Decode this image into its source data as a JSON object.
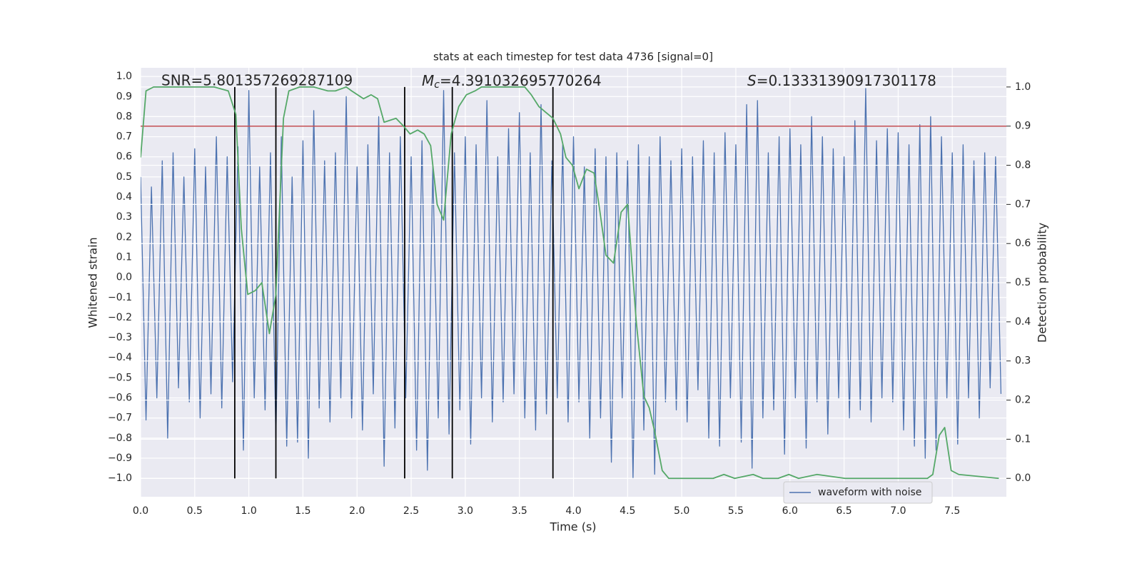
{
  "chart_data": {
    "type": "line",
    "title": "stats at each timestep for test data 4736 [signal=0]",
    "xlabel": "Time (s)",
    "ylabel": "Whitened strain",
    "y2label": "Detection probability",
    "annotations": [
      {
        "text": "SNR=5.801357269287109"
      },
      {
        "symbol": "M",
        "subscript": "c",
        "text": "=4.391032695770264"
      },
      {
        "symbol": "S",
        "text": "=0.13331390917301178"
      }
    ],
    "xlim": [
      0,
      8
    ],
    "xticks": [
      {
        "value": 0,
        "label": "0.0"
      },
      0.5,
      {
        "value": 1,
        "label": "1.0"
      },
      1.5,
      {
        "value": 2,
        "label": "2.0"
      },
      2.5,
      {
        "value": 3,
        "label": "3.0"
      },
      3.5,
      {
        "value": 4,
        "label": "4.0"
      },
      4.5,
      {
        "value": 5,
        "label": "5.0"
      },
      5.5,
      {
        "value": 6,
        "label": "6.0"
      },
      6.5,
      {
        "value": 7,
        "label": "7.0"
      },
      7.5
    ],
    "ylim": [
      -1.092,
      1.043
    ],
    "yticks": [
      {
        "value": -1,
        "label": "−1.0"
      },
      {
        "value": -0.9,
        "label": "−0.9"
      },
      {
        "value": -0.8,
        "label": "−0.8"
      },
      {
        "value": -0.7,
        "label": "−0.7"
      },
      {
        "value": -0.6,
        "label": "−0.6"
      },
      {
        "value": -0.5,
        "label": "−0.5"
      },
      {
        "value": -0.4,
        "label": "−0.4"
      },
      {
        "value": -0.3,
        "label": "−0.3"
      },
      {
        "value": -0.2,
        "label": "−0.2"
      },
      {
        "value": -0.1,
        "label": "−0.1"
      },
      {
        "value": 0,
        "label": "0.0"
      },
      0.1,
      0.2,
      0.3,
      0.4,
      0.5,
      0.6,
      0.7,
      0.8,
      0.9,
      {
        "value": 1,
        "label": "1.0"
      }
    ],
    "y2lim": [
      -0.047,
      1.049
    ],
    "y2ticks": [
      {
        "value": 0,
        "label": "0.0"
      },
      0.1,
      0.2,
      0.3,
      0.4,
      0.5,
      0.6,
      0.7,
      0.8,
      0.9,
      {
        "value": 1,
        "label": "1.0"
      }
    ],
    "grid": true,
    "legend": "lower right",
    "series": [
      {
        "name": "waveform with noise",
        "color": "#4c72b0",
        "x": [
          0,
          0.05,
          0.1,
          0.15,
          0.2,
          0.25,
          0.3,
          0.35,
          0.4,
          0.45,
          0.5,
          0.55,
          0.6,
          0.65,
          0.7,
          0.75,
          0.8,
          0.85,
          0.9,
          0.95,
          1,
          1.05,
          1.1,
          1.15,
          1.2,
          1.25,
          1.3,
          1.35,
          1.4,
          1.45,
          1.5,
          1.55,
          1.6,
          1.65,
          1.7,
          1.75,
          1.8,
          1.85,
          1.9,
          1.95,
          2,
          2.05,
          2.1,
          2.15,
          2.2,
          2.25,
          2.3,
          2.35,
          2.4,
          2.45,
          2.5,
          2.55,
          2.6,
          2.65,
          2.7,
          2.75,
          2.8,
          2.85,
          2.9,
          2.95,
          3,
          3.05,
          3.1,
          3.15,
          3.2,
          3.25,
          3.3,
          3.35,
          3.4,
          3.45,
          3.5,
          3.55,
          3.6,
          3.65,
          3.7,
          3.75,
          3.8,
          3.85,
          3.9,
          3.95,
          4,
          4.05,
          4.1,
          4.15,
          4.2,
          4.25,
          4.3,
          4.35,
          4.4,
          4.45,
          4.5,
          4.55,
          4.6,
          4.65,
          4.7,
          4.75,
          4.8,
          4.85,
          4.9,
          4.95,
          5,
          5.05,
          5.1,
          5.15,
          5.2,
          5.25,
          5.3,
          5.35,
          5.4,
          5.45,
          5.5,
          5.55,
          5.6,
          5.65,
          5.7,
          5.75,
          5.8,
          5.85,
          5.9,
          5.95,
          6,
          6.05,
          6.1,
          6.15,
          6.2,
          6.25,
          6.3,
          6.35,
          6.4,
          6.45,
          6.5,
          6.55,
          6.6,
          6.65,
          6.7,
          6.75,
          6.8,
          6.85,
          6.9,
          6.95,
          7,
          7.05,
          7.1,
          7.15,
          7.2,
          7.25,
          7.3,
          7.35,
          7.4,
          7.45,
          7.5,
          7.55,
          7.6,
          7.65,
          7.7,
          7.75,
          7.8,
          7.85,
          7.9,
          7.95
        ],
        "values": [
          0.5,
          -0.71,
          0.45,
          -0.6,
          0.58,
          -0.8,
          0.62,
          -0.55,
          0.5,
          -0.62,
          0.64,
          -0.7,
          0.55,
          -0.58,
          0.7,
          -0.65,
          0.6,
          -0.52,
          0.65,
          -0.86,
          0.93,
          -0.6,
          0.55,
          -0.66,
          0.62,
          -0.8,
          0.7,
          -0.84,
          0.5,
          -0.82,
          0.68,
          -0.9,
          0.83,
          -0.65,
          0.58,
          -0.72,
          0.62,
          -0.6,
          0.9,
          -0.7,
          0.55,
          -0.76,
          0.66,
          -0.58,
          0.8,
          -0.94,
          0.62,
          -0.75,
          0.7,
          -0.6,
          0.6,
          -0.86,
          0.68,
          -0.96,
          0.55,
          -0.7,
          0.93,
          -0.78,
          0.62,
          -0.66,
          0.7,
          -0.83,
          0.66,
          -0.6,
          0.88,
          -0.72,
          0.6,
          -0.62,
          0.74,
          -0.58,
          0.82,
          -0.7,
          0.62,
          -0.76,
          0.86,
          -0.68,
          0.58,
          -0.6,
          0.66,
          -0.72,
          0.7,
          -0.62,
          0.55,
          -0.8,
          0.64,
          -0.7,
          0.6,
          -0.92,
          0.62,
          -0.6,
          0.58,
          -1.0,
          0.66,
          -0.76,
          0.6,
          -0.98,
          0.7,
          -0.62,
          0.58,
          -0.66,
          0.64,
          -0.72,
          0.6,
          -0.56,
          0.68,
          -0.8,
          0.62,
          -0.84,
          0.72,
          -0.6,
          0.66,
          -0.82,
          0.86,
          -0.95,
          0.88,
          -0.7,
          0.62,
          -0.66,
          0.7,
          -0.88,
          0.74,
          -0.6,
          0.66,
          -0.85,
          0.8,
          -0.62,
          0.7,
          -0.78,
          0.64,
          -0.6,
          0.6,
          -0.7,
          0.78,
          -0.66,
          0.94,
          -0.72,
          0.68,
          -0.6,
          0.74,
          -0.62,
          0.72,
          -0.76,
          0.66,
          -0.84,
          0.76,
          -0.9,
          0.8,
          -0.86,
          0.7,
          -0.6,
          0.62,
          -0.83,
          0.66,
          -0.6,
          0.58,
          -0.7,
          0.62,
          -0.55,
          0.6,
          -0.58
        ]
      },
      {
        "color": "#55a868",
        "axis": "y2",
        "x": [
          0,
          0.05,
          0.12,
          0.68,
          0.81,
          0.88,
          0.93,
          0.99,
          1.06,
          1.12,
          1.19,
          1.25,
          1.32,
          1.37,
          1.47,
          1.6,
          1.73,
          1.8,
          1.9,
          1.95,
          2.06,
          2.13,
          2.19,
          2.25,
          2.36,
          2.43,
          2.49,
          2.56,
          2.62,
          2.68,
          2.74,
          2.8,
          2.87,
          2.94,
          3.01,
          3.09,
          3.15,
          3.55,
          3.61,
          3.68,
          3.81,
          3.88,
          3.93,
          3.99,
          4.05,
          4.12,
          4.19,
          4.24,
          4.3,
          4.37,
          4.44,
          4.5,
          4.58,
          4.65,
          4.7,
          4.75,
          4.82,
          4.88,
          5.29,
          5.39,
          5.49,
          5.66,
          5.75,
          5.89,
          5.99,
          6.08,
          6.25,
          6.51,
          6.68,
          7.27,
          7.32,
          7.38,
          7.43,
          7.49,
          7.56,
          7.93
        ],
        "values": [
          0.82,
          0.99,
          1.0,
          1.0,
          0.99,
          0.93,
          0.64,
          0.47,
          0.48,
          0.5,
          0.37,
          0.47,
          0.92,
          0.99,
          1.0,
          1.0,
          0.99,
          0.99,
          1.0,
          0.99,
          0.97,
          0.98,
          0.97,
          0.91,
          0.92,
          0.9,
          0.88,
          0.89,
          0.88,
          0.85,
          0.7,
          0.66,
          0.88,
          0.95,
          0.98,
          0.99,
          1.0,
          1.0,
          0.98,
          0.95,
          0.92,
          0.88,
          0.82,
          0.8,
          0.74,
          0.79,
          0.78,
          0.69,
          0.57,
          0.55,
          0.68,
          0.7,
          0.4,
          0.21,
          0.18,
          0.12,
          0.02,
          0.0,
          0.0,
          0.01,
          0.0,
          0.01,
          0.0,
          0.0,
          0.01,
          0.0,
          0.01,
          0.0,
          0.0,
          0.0,
          0.01,
          0.11,
          0.13,
          0.02,
          0.01,
          0.0
        ]
      }
    ],
    "hline": {
      "value": 0.9,
      "axis": "y2",
      "color": "#c44e52"
    },
    "vlines": {
      "x": [
        0.87,
        1.25,
        2.44,
        2.88,
        3.81
      ],
      "ymin": 0,
      "ymax": 1.0,
      "axis": "y2",
      "color": "#000000"
    }
  }
}
